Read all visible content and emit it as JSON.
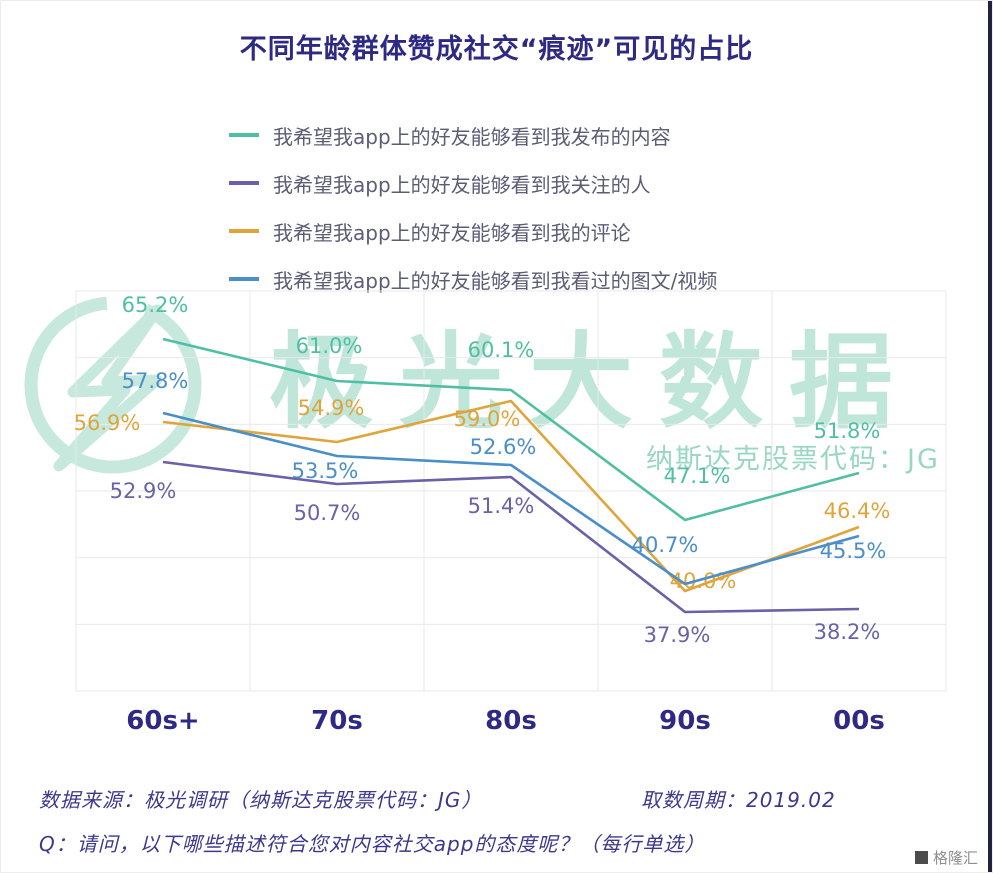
{
  "watermark": {
    "text": "极光大数据",
    "sub_text": "纳斯达克股票代码：JG"
  },
  "footer": {
    "source": "数据来源：极光调研（纳斯达克股票代码：JG）",
    "period": "取数周期：2019.02",
    "question": "Q：请问，以下哪些描述符合您对内容社交app的态度呢？（每行单选）"
  },
  "branding": {
    "gelonghui": "格隆汇"
  },
  "colors": {
    "title": "#2e2a84",
    "watermark": "#8ed3bc",
    "grid": "#e9e9ec"
  },
  "chart_data": {
    "type": "line",
    "title": "不同年龄群体赞成社交“痕迹”可见的占比",
    "categories": [
      "60s+",
      "70s",
      "80s",
      "90s",
      "00s"
    ],
    "series": [
      {
        "name": "我希望我app上的好友能够看到我发布的内容",
        "color": "#4fbfa3",
        "values": [
          65.2,
          61.0,
          60.1,
          47.1,
          51.8
        ],
        "label_offsets": [
          [
            -8,
            -27
          ],
          [
            -8,
            -28
          ],
          [
            -10,
            -33
          ],
          [
            12,
            -37
          ],
          [
            -12,
            -35
          ]
        ]
      },
      {
        "name": "我希望我app上的好友能够看到我关注的人",
        "color": "#6a61a8",
        "values": [
          52.9,
          50.7,
          51.4,
          37.9,
          38.2
        ],
        "label_offsets": [
          [
            -20,
            36
          ],
          [
            -10,
            36
          ],
          [
            -10,
            36
          ],
          [
            -8,
            30
          ],
          [
            -12,
            30
          ]
        ]
      },
      {
        "name": "我希望我app上的好友能够看到我的评论",
        "color": "#dfa53c",
        "values": [
          56.9,
          54.9,
          59.0,
          40.0,
          46.4
        ],
        "label_offsets": [
          [
            -56,
            8
          ],
          [
            -6,
            -27
          ],
          [
            -24,
            25
          ],
          [
            18,
            -3
          ],
          [
            -2,
            -9
          ]
        ]
      },
      {
        "name": "我希望我app上的好友能够看到我看过的图文/视频",
        "color": "#4a8fc8",
        "values": [
          57.8,
          53.5,
          52.6,
          40.7,
          45.5
        ],
        "label_offsets": [
          [
            -8,
            -25
          ],
          [
            -12,
            22
          ],
          [
            -8,
            -11
          ],
          [
            -20,
            -32
          ],
          [
            -6,
            22
          ]
        ]
      }
    ],
    "ylim": [
      30,
      70
    ],
    "grid": true,
    "legend_position": "top-left",
    "value_suffix": "%"
  }
}
